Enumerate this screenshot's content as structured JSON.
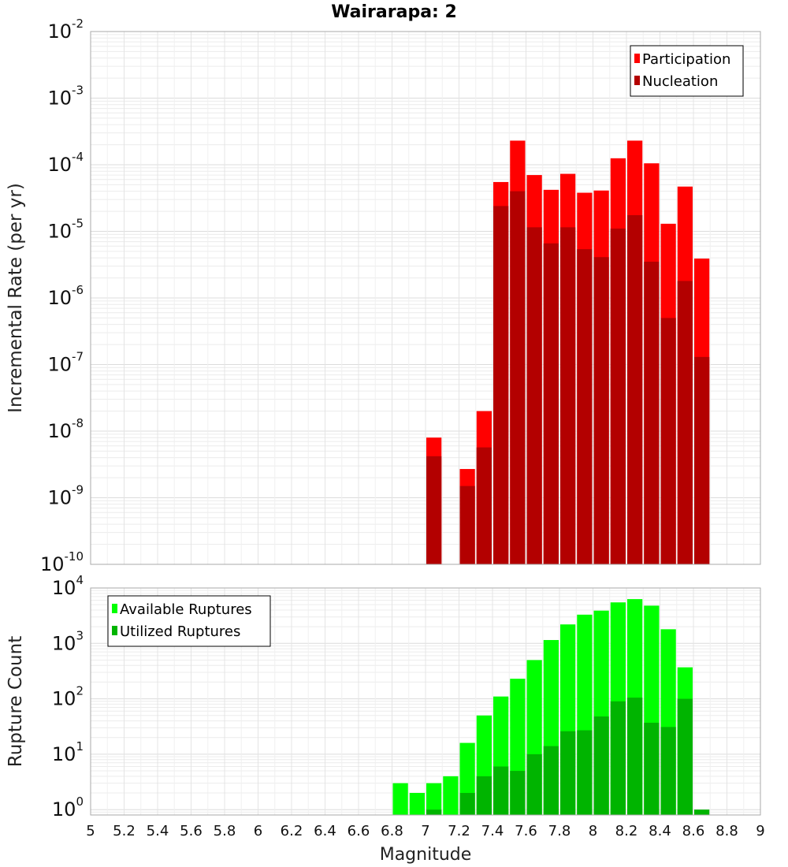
{
  "chart_data": [
    {
      "type": "bar",
      "title": "Wairarapa: 2",
      "xlabel": "",
      "ylabel": "Incremental Rate (per yr)",
      "yscale": "log",
      "xlim": [
        5,
        9
      ],
      "ylim": [
        1e-10,
        0.01
      ],
      "ytick_exponents": [
        "-2",
        "-3",
        "-4",
        "-5",
        "-6",
        "-7",
        "-8",
        "-9",
        "-10"
      ],
      "ytick_base": "10",
      "bar_width": 0.1,
      "legend_position": "top-right",
      "grid": true,
      "series": [
        {
          "name": "Participation",
          "color": "#ff0000",
          "points": [
            {
              "x": 7.05,
              "y": 8e-09
            },
            {
              "x": 7.25,
              "y": 2.7e-09
            },
            {
              "x": 7.35,
              "y": 2e-08
            },
            {
              "x": 7.45,
              "y": 5.5e-05
            },
            {
              "x": 7.55,
              "y": 0.00023
            },
            {
              "x": 7.65,
              "y": 7e-05
            },
            {
              "x": 7.75,
              "y": 4.2e-05
            },
            {
              "x": 7.85,
              "y": 7.3e-05
            },
            {
              "x": 7.95,
              "y": 3.8e-05
            },
            {
              "x": 8.05,
              "y": 4.1e-05
            },
            {
              "x": 8.15,
              "y": 0.000125
            },
            {
              "x": 8.25,
              "y": 0.00023
            },
            {
              "x": 8.35,
              "y": 0.000105
            },
            {
              "x": 8.45,
              "y": 1.3e-05
            },
            {
              "x": 8.55,
              "y": 4.7e-05
            },
            {
              "x": 8.65,
              "y": 3.9e-06
            }
          ]
        },
        {
          "name": "Nucleation",
          "color": "#b30000",
          "points": [
            {
              "x": 7.05,
              "y": 4.2e-09
            },
            {
              "x": 7.25,
              "y": 1.5e-09
            },
            {
              "x": 7.35,
              "y": 5.7e-09
            },
            {
              "x": 7.45,
              "y": 2.4e-05
            },
            {
              "x": 7.55,
              "y": 4e-05
            },
            {
              "x": 7.65,
              "y": 1.15e-05
            },
            {
              "x": 7.75,
              "y": 6.6e-06
            },
            {
              "x": 7.85,
              "y": 1.15e-05
            },
            {
              "x": 7.95,
              "y": 5.4e-06
            },
            {
              "x": 8.05,
              "y": 4.1e-06
            },
            {
              "x": 8.15,
              "y": 1.1e-05
            },
            {
              "x": 8.25,
              "y": 1.75e-05
            },
            {
              "x": 8.35,
              "y": 3.5e-06
            },
            {
              "x": 8.45,
              "y": 5e-07
            },
            {
              "x": 8.55,
              "y": 1.8e-06
            },
            {
              "x": 8.65,
              "y": 1.3e-07
            }
          ]
        }
      ]
    },
    {
      "type": "bar",
      "title": "",
      "xlabel": "Magnitude",
      "ylabel": "Rupture Count",
      "yscale": "log",
      "xlim": [
        5,
        9
      ],
      "ylim": [
        0.8,
        10000
      ],
      "ytick_exponents": [
        "4",
        "3",
        "2",
        "1",
        "0"
      ],
      "ytick_base": "10",
      "xticks": [
        "5",
        "5.2",
        "5.4",
        "5.6",
        "5.8",
        "6",
        "6.2",
        "6.4",
        "6.6",
        "6.8",
        "7",
        "7.2",
        "7.4",
        "7.6",
        "7.8",
        "8",
        "8.2",
        "8.4",
        "8.6",
        "8.8",
        "9"
      ],
      "bar_width": 0.1,
      "legend_position": "top-left",
      "grid": true,
      "series": [
        {
          "name": "Available Ruptures",
          "color": "#00ff00",
          "points": [
            {
              "x": 6.85,
              "y": 3
            },
            {
              "x": 6.95,
              "y": 2
            },
            {
              "x": 7.05,
              "y": 3
            },
            {
              "x": 7.15,
              "y": 4
            },
            {
              "x": 7.25,
              "y": 16
            },
            {
              "x": 7.35,
              "y": 50
            },
            {
              "x": 7.45,
              "y": 110
            },
            {
              "x": 7.55,
              "y": 230
            },
            {
              "x": 7.65,
              "y": 500
            },
            {
              "x": 7.75,
              "y": 1150
            },
            {
              "x": 7.85,
              "y": 2200
            },
            {
              "x": 7.95,
              "y": 3300
            },
            {
              "x": 8.05,
              "y": 3900
            },
            {
              "x": 8.15,
              "y": 5500
            },
            {
              "x": 8.25,
              "y": 6300
            },
            {
              "x": 8.35,
              "y": 4800
            },
            {
              "x": 8.45,
              "y": 1800
            },
            {
              "x": 8.55,
              "y": 370
            }
          ]
        },
        {
          "name": "Utilized Ruptures",
          "color": "#00b400",
          "points": [
            {
              "x": 7.05,
              "y": 1
            },
            {
              "x": 7.25,
              "y": 2
            },
            {
              "x": 7.35,
              "y": 4
            },
            {
              "x": 7.45,
              "y": 6
            },
            {
              "x": 7.55,
              "y": 5
            },
            {
              "x": 7.65,
              "y": 10
            },
            {
              "x": 7.75,
              "y": 14
            },
            {
              "x": 7.85,
              "y": 26
            },
            {
              "x": 7.95,
              "y": 27
            },
            {
              "x": 8.05,
              "y": 48
            },
            {
              "x": 8.15,
              "y": 90
            },
            {
              "x": 8.25,
              "y": 105
            },
            {
              "x": 8.35,
              "y": 37
            },
            {
              "x": 8.45,
              "y": 31
            },
            {
              "x": 8.55,
              "y": 100
            },
            {
              "x": 8.65,
              "y": 1
            }
          ]
        }
      ]
    }
  ]
}
